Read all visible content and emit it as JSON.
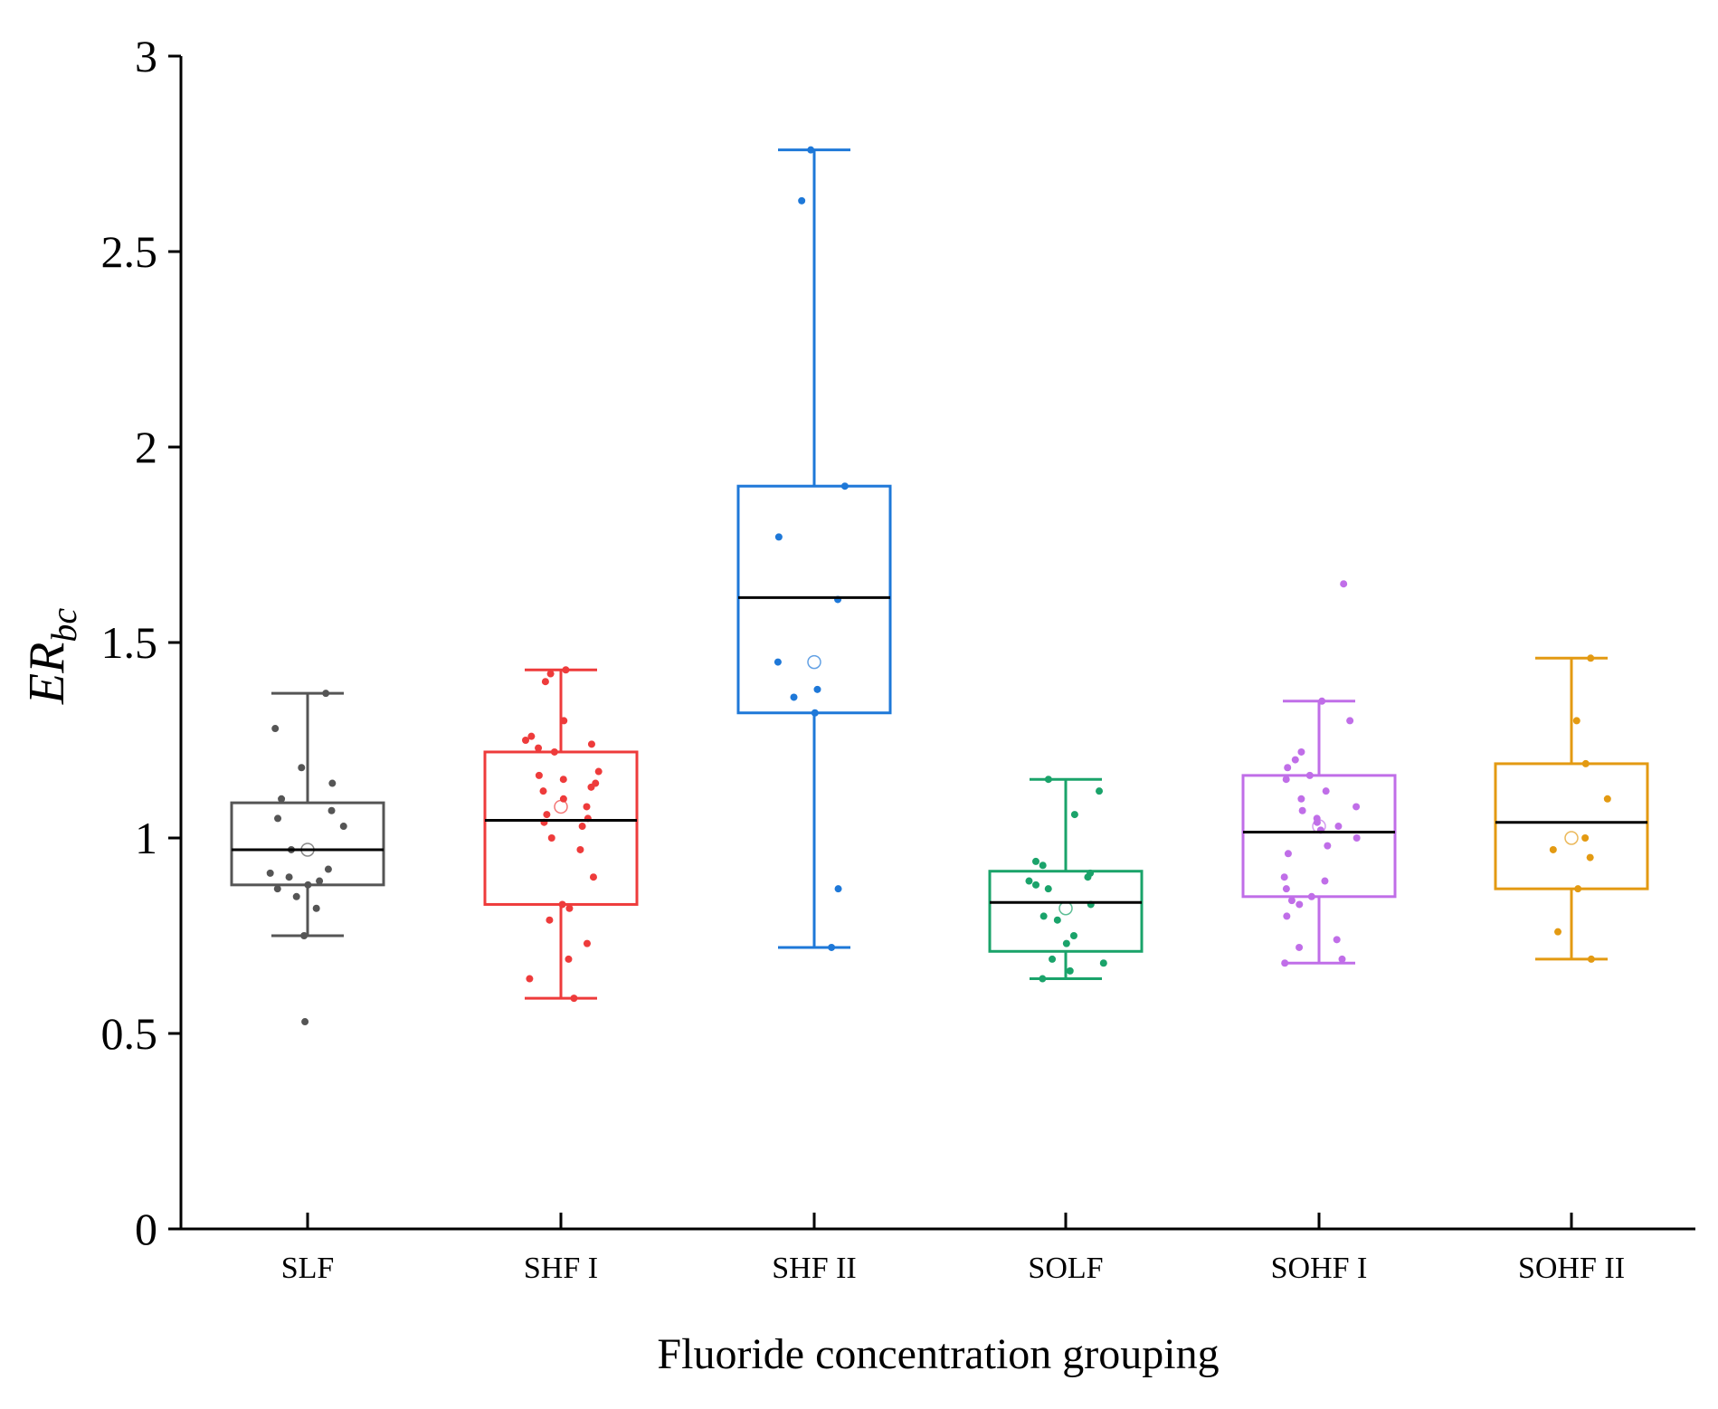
{
  "chart_data": {
    "type": "box",
    "title": "",
    "xlabel": "Fluoride concentration grouping",
    "ylabel_main": "ER",
    "ylabel_sub": "bc",
    "ylim": [
      0,
      3
    ],
    "yticks": [
      0,
      0.5,
      1,
      1.5,
      2,
      2.5,
      3
    ],
    "ytick_labels": [
      "0",
      "0.5",
      "1",
      "1.5",
      "2",
      "2.5",
      "3"
    ],
    "grid": false,
    "categories": [
      "SLF",
      "SHF I",
      "SHF II",
      "SOLF",
      "SOHF I",
      "SOHF II"
    ],
    "series": [
      {
        "name": "SLF",
        "color": "#555555",
        "whisker_low": 0.75,
        "q1": 0.88,
        "median": 0.97,
        "q3": 1.09,
        "whisker_high": 1.37,
        "mean": 0.97,
        "points": [
          1.37,
          1.28,
          1.18,
          1.14,
          1.1,
          1.07,
          1.05,
          1.03,
          0.97,
          0.92,
          0.91,
          0.9,
          0.89,
          0.88,
          0.87,
          0.85,
          0.82,
          0.75,
          0.53
        ]
      },
      {
        "name": "SHF I",
        "color": "#ee3b3b",
        "whisker_low": 0.59,
        "q1": 0.83,
        "median": 1.045,
        "q3": 1.22,
        "whisker_high": 1.43,
        "mean": 1.08,
        "points": [
          1.43,
          1.42,
          1.4,
          1.3,
          1.26,
          1.25,
          1.24,
          1.23,
          1.22,
          1.17,
          1.16,
          1.15,
          1.14,
          1.13,
          1.12,
          1.1,
          1.08,
          1.06,
          1.05,
          1.04,
          1.03,
          1.0,
          0.97,
          0.9,
          0.83,
          0.82,
          0.79,
          0.73,
          0.69,
          0.64,
          0.59
        ]
      },
      {
        "name": "SHF II",
        "color": "#1e78d8",
        "whisker_low": 0.72,
        "q1": 1.32,
        "median": 1.615,
        "q3": 1.9,
        "whisker_high": 2.76,
        "mean": 1.45,
        "points": [
          2.76,
          2.63,
          1.9,
          1.77,
          1.61,
          1.45,
          1.38,
          1.36,
          1.32,
          0.87,
          0.72
        ]
      },
      {
        "name": "SOLF",
        "color": "#1aa36a",
        "whisker_low": 0.64,
        "q1": 0.71,
        "median": 0.835,
        "q3": 0.915,
        "whisker_high": 1.15,
        "mean": 0.82,
        "points": [
          1.15,
          1.12,
          1.06,
          0.94,
          0.93,
          0.91,
          0.9,
          0.89,
          0.88,
          0.87,
          0.83,
          0.8,
          0.79,
          0.75,
          0.73,
          0.69,
          0.68,
          0.66,
          0.64
        ]
      },
      {
        "name": "SOHF I",
        "color": "#c06ee8",
        "whisker_low": 0.68,
        "q1": 0.85,
        "median": 1.015,
        "q3": 1.16,
        "whisker_high": 1.35,
        "mean": 1.03,
        "points": [
          1.65,
          1.35,
          1.3,
          1.22,
          1.2,
          1.18,
          1.16,
          1.15,
          1.12,
          1.1,
          1.08,
          1.07,
          1.05,
          1.04,
          1.03,
          1.02,
          1.0,
          0.98,
          0.96,
          0.9,
          0.89,
          0.87,
          0.85,
          0.84,
          0.83,
          0.8,
          0.74,
          0.72,
          0.69,
          0.68
        ]
      },
      {
        "name": "SOHF II",
        "color": "#e39a12",
        "whisker_low": 0.69,
        "q1": 0.87,
        "median": 1.04,
        "q3": 1.19,
        "whisker_high": 1.46,
        "mean": 1.0,
        "points": [
          1.46,
          1.3,
          1.19,
          1.1,
          1.0,
          0.97,
          0.95,
          0.87,
          0.76,
          0.69
        ]
      }
    ]
  }
}
